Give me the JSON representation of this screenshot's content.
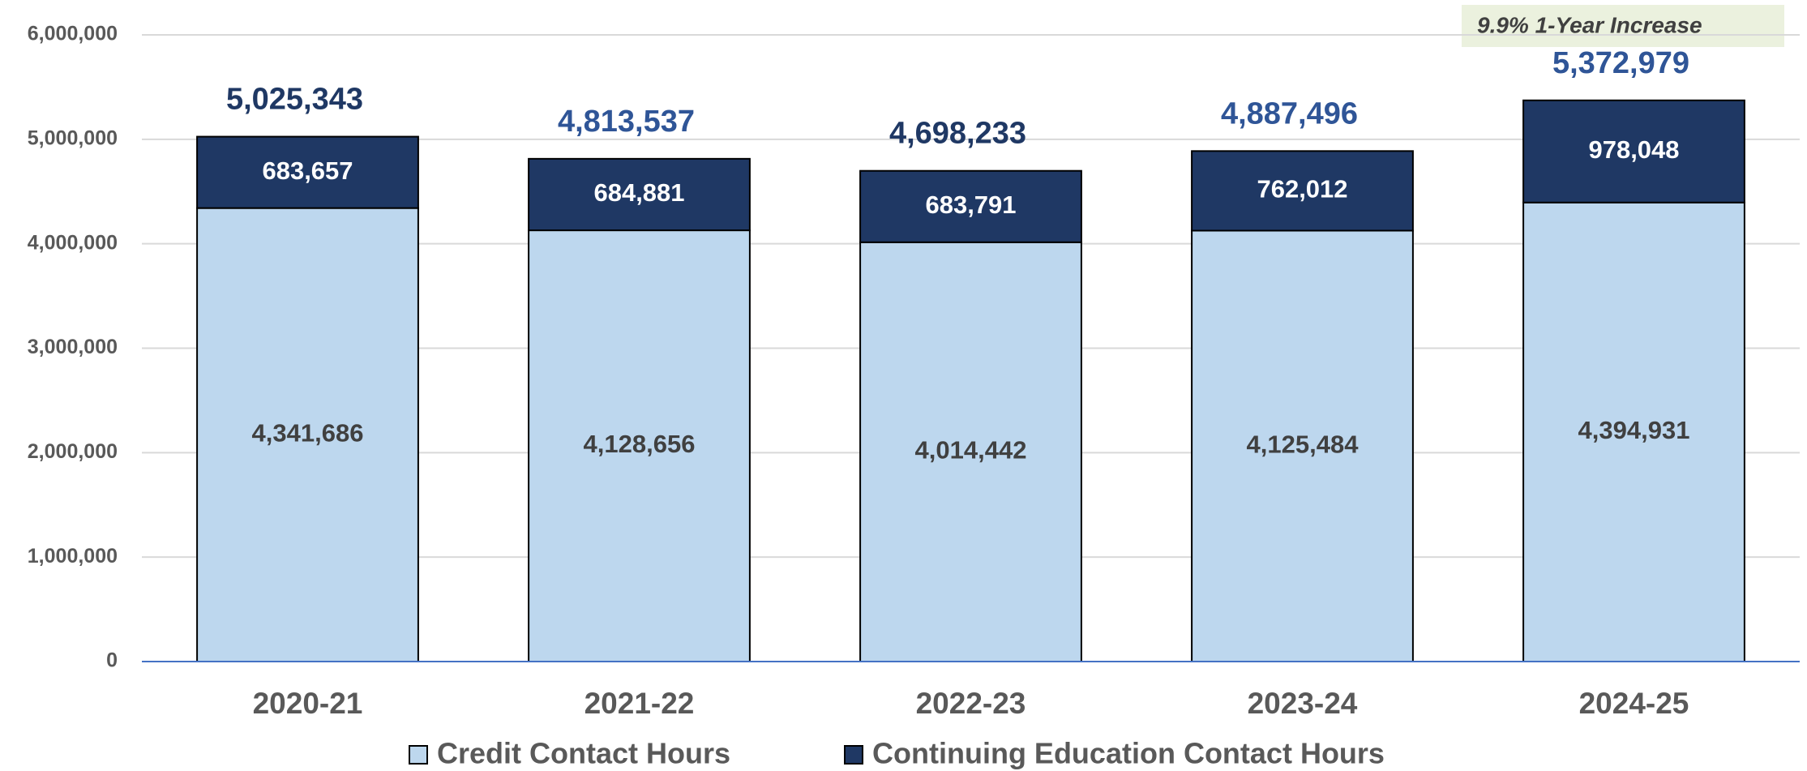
{
  "chart_data": {
    "type": "stacked_bar",
    "categories": [
      "2020-21",
      "2021-22",
      "2022-23",
      "2023-24",
      "2024-25"
    ],
    "series": [
      {
        "name": "Credit Contact Hours",
        "color": "#bdd7ee",
        "label_color": "#404040",
        "values": [
          4341686,
          4128656,
          4014442,
          4125484,
          4394931
        ],
        "value_labels": [
          "4,341,686",
          "4,128,656",
          "4,014,442",
          "4,125,484",
          "4,394,931"
        ]
      },
      {
        "name": "Continuing Education Contact Hours",
        "color": "#1f3864",
        "label_color": "#ffffff",
        "values": [
          683657,
          684881,
          683791,
          762012,
          978048
        ],
        "value_labels": [
          "683,657",
          "684,881",
          "683,791",
          "762,012",
          "978,048"
        ]
      }
    ],
    "totals": {
      "values": [
        5025343,
        4813537,
        4698233,
        4887496,
        5372979
      ],
      "value_labels": [
        "5,025,343",
        "4,813,537",
        "4,698,233",
        "4,887,496",
        "5,372,979"
      ],
      "colors": [
        "#1f3864",
        "#2f5597",
        "#1f3864",
        "#2f5597",
        "#2f5597"
      ]
    },
    "annotation": "9.9% 1-Year Increase",
    "ylim": [
      0,
      6000000
    ],
    "yticks": [
      0,
      {
        "value": 1000000,
        "label": "1,000,000"
      },
      {
        "value": 2000000,
        "label": "2,000,000"
      },
      {
        "value": 3000000,
        "label": "3,000,000"
      },
      {
        "value": 4000000,
        "label": "4,000,000"
      },
      {
        "value": 5000000,
        "label": "5,000,000"
      },
      {
        "value": 6000000,
        "label": "6,000,000"
      }
    ],
    "grid": true,
    "legend": "bottom"
  }
}
